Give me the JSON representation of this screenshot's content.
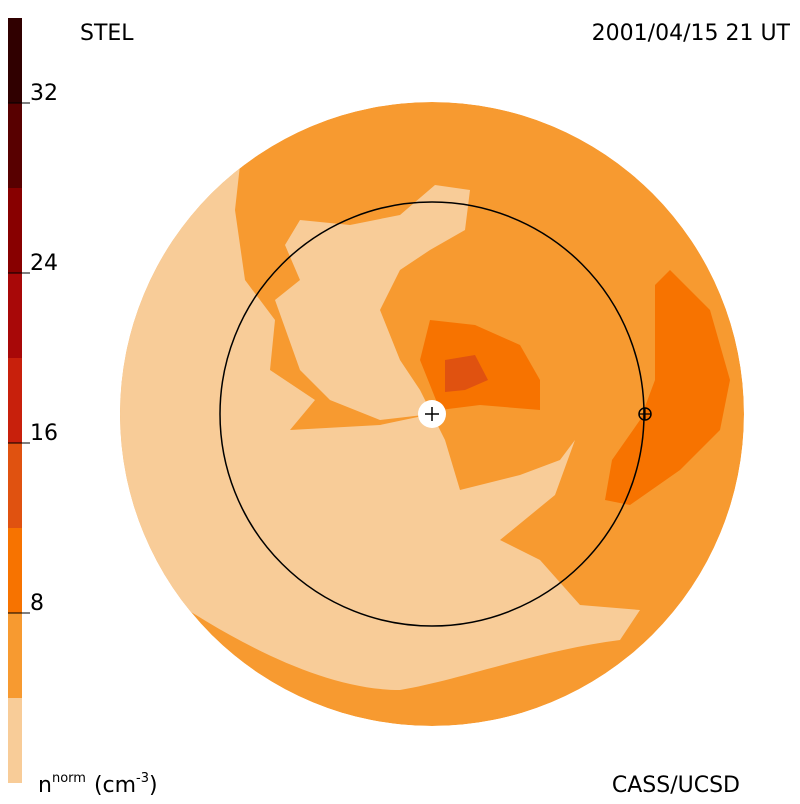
{
  "header": {
    "left": "STEL",
    "right": "2001/04/15 21 UT"
  },
  "footer": {
    "credit": "CASS/UCSD"
  },
  "colorbar": {
    "label": {
      "base": "n",
      "sup": "norm",
      "unit": "(cm",
      "unit_sup": "-3",
      "close": ")"
    },
    "lim": [
      0,
      36
    ],
    "bounds": [
      0,
      4,
      8,
      12,
      16,
      20,
      24,
      28,
      32,
      36
    ],
    "colors": [
      "#f8cc98",
      "#f79a30",
      "#f77300",
      "#e05210",
      "#c8200c",
      "#a80808",
      "#880000",
      "#580000",
      "#300000"
    ],
    "ticks": [
      8,
      16,
      24,
      32
    ]
  }
}
